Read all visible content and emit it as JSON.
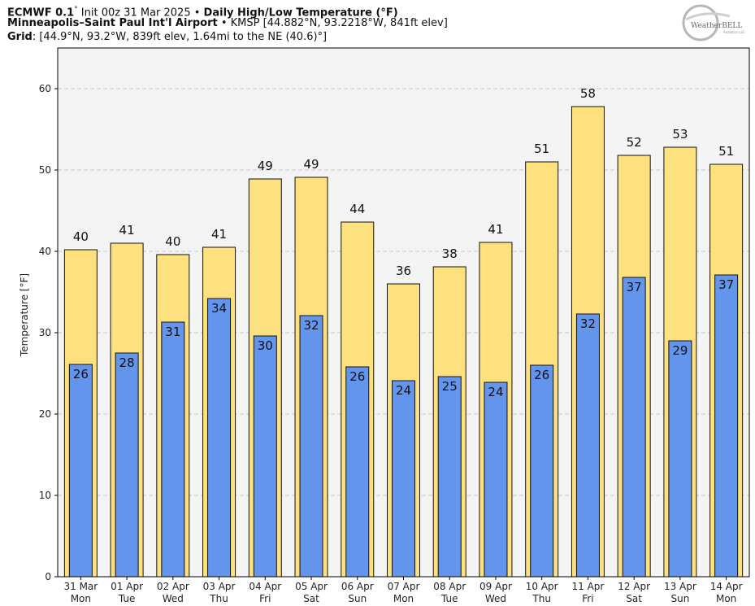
{
  "header": {
    "line1_bold_model": "ECMWF 0.1",
    "line1_deg": "°",
    "line1_init": " Init 00z 31 Mar 2025 • ",
    "line1_bold_title": "Daily High/Low Temperature (°F)",
    "line2_bold_site": "Minneapolis–Saint Paul Int'l Airport",
    "line2_info": " • KMSP [44.882°N, 93.2218°W, 841ft elev]",
    "line3_bold_grid": "Grid",
    "line3_info": ": [44.9°N, 93.2°W, 839ft elev, 1.64mi to the NE (40.6)°]"
  },
  "logo": {
    "name": "WeatherBELL",
    "sub": "Analytics LLC"
  },
  "colors": {
    "high_fill": "#FDE17F",
    "low_fill": "#6495ED",
    "bar_stroke": "#111111",
    "plot_bg": "#F4F4F4",
    "grid": "#C8C8C8"
  },
  "chart_data": {
    "type": "bar",
    "title": "Daily High/Low Temperature (°F)",
    "ylabel": "Temperature [°F]",
    "xlabel": "",
    "ylim": [
      0,
      65
    ],
    "yticks": [
      0,
      10,
      20,
      30,
      40,
      50,
      60
    ],
    "grid": true,
    "categories": [
      {
        "date": "31 Mar",
        "day": "Mon"
      },
      {
        "date": "01 Apr",
        "day": "Tue"
      },
      {
        "date": "02 Apr",
        "day": "Wed"
      },
      {
        "date": "03 Apr",
        "day": "Thu"
      },
      {
        "date": "04 Apr",
        "day": "Fri"
      },
      {
        "date": "05 Apr",
        "day": "Sat"
      },
      {
        "date": "06 Apr",
        "day": "Sun"
      },
      {
        "date": "07 Apr",
        "day": "Mon"
      },
      {
        "date": "08 Apr",
        "day": "Tue"
      },
      {
        "date": "09 Apr",
        "day": "Wed"
      },
      {
        "date": "10 Apr",
        "day": "Thu"
      },
      {
        "date": "11 Apr",
        "day": "Fri"
      },
      {
        "date": "12 Apr",
        "day": "Sat"
      },
      {
        "date": "13 Apr",
        "day": "Sun"
      },
      {
        "date": "14 Apr",
        "day": "Mon"
      }
    ],
    "series": [
      {
        "name": "High",
        "values": [
          40.2,
          41.0,
          39.6,
          40.5,
          48.9,
          49.1,
          43.6,
          36.0,
          38.1,
          41.1,
          51.0,
          57.8,
          51.8,
          52.8,
          50.7
        ],
        "labels": [
          "40",
          "41",
          "40",
          "41",
          "49",
          "49",
          "44",
          "36",
          "38",
          "41",
          "51",
          "58",
          "52",
          "53",
          "51"
        ]
      },
      {
        "name": "Low",
        "values": [
          26.1,
          27.5,
          31.3,
          34.2,
          29.6,
          32.1,
          25.8,
          24.1,
          24.6,
          23.9,
          26.0,
          32.3,
          36.8,
          29.0,
          37.1
        ],
        "labels": [
          "26",
          "28",
          "31",
          "34",
          "30",
          "32",
          "26",
          "24",
          "25",
          "24",
          "26",
          "32",
          "37",
          "29",
          "37"
        ]
      }
    ]
  }
}
